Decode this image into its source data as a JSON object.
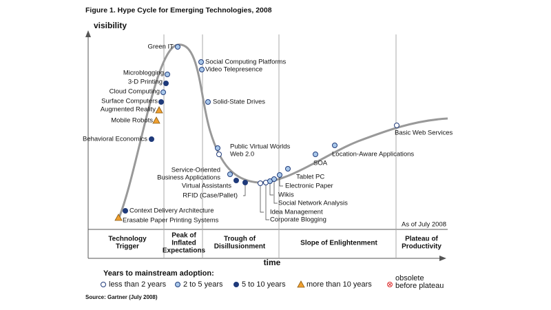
{
  "title": "Figure 1. Hype Cycle for Emerging Technologies, 2008",
  "y_axis_label": "visibility",
  "x_axis_label": "time",
  "as_of": "As of July 2008",
  "phases": [
    [
      "Technology",
      "Trigger"
    ],
    [
      "Peak of",
      "Inflated",
      "Expectations"
    ],
    [
      "Trough of",
      "Disillusionment"
    ],
    [
      "Slope of Enlightenment"
    ],
    [
      "Plateau of",
      "Productivity"
    ]
  ],
  "technologies": [
    {
      "label": [
        "Green IT"
      ],
      "color": "#a9c8ea",
      "shape": "circle"
    },
    {
      "label": [
        "Social Computing Platforms"
      ],
      "color": "#a9c8ea",
      "shape": "circle"
    },
    {
      "label": [
        "Video Telepresence"
      ],
      "color": "#a9c8ea",
      "shape": "circle"
    },
    {
      "label": [
        "Microblogging"
      ],
      "color": "#a9c8ea",
      "shape": "circle"
    },
    {
      "label": [
        "3-D Printing"
      ],
      "color": "#1f3a7a",
      "shape": "circle"
    },
    {
      "label": [
        "Cloud Computing"
      ],
      "color": "#a9c8ea",
      "shape": "circle"
    },
    {
      "label": [
        "Surface Computers"
      ],
      "color": "#1f3a7a",
      "shape": "circle"
    },
    {
      "label": [
        "Augmented Reality"
      ],
      "color": "#f0a030",
      "shape": "triangle"
    },
    {
      "label": [
        "Mobile Robots"
      ],
      "color": "#f0a030",
      "shape": "triangle"
    },
    {
      "label": [
        "Solid-State Drives"
      ],
      "color": "#a9c8ea",
      "shape": "circle"
    },
    {
      "label": [
        "Behavioral Economics"
      ],
      "color": "#1f3a7a",
      "shape": "circle"
    },
    {
      "label": [
        "Public Virtual Worlds"
      ],
      "color": "#a9c8ea",
      "shape": "circle"
    },
    {
      "label": [
        "Web 2.0"
      ],
      "color": "#ffffff",
      "shape": "circle"
    },
    {
      "label": [
        "Service-Oriented",
        "Business Applications"
      ],
      "color": "#a9c8ea",
      "shape": "circle"
    },
    {
      "label": [
        "Virtual Assistants"
      ],
      "color": "#1f3a7a",
      "shape": "circle"
    },
    {
      "label": [
        "RFID (Case/Pallet)"
      ],
      "color": "#1f3a7a",
      "shape": "circle"
    },
    {
      "label": [
        "Idea Management"
      ],
      "color": "#ffffff",
      "shape": "circle"
    },
    {
      "label": [
        "Corporate Blogging"
      ],
      "color": "#ffffff",
      "shape": "circle"
    },
    {
      "label": [
        "Wikis"
      ],
      "color": "#a9c8ea",
      "shape": "circle"
    },
    {
      "label": [
        "Social Network Analysis"
      ],
      "color": "#a9c8ea",
      "shape": "circle"
    },
    {
      "label": [
        "Electronic Paper"
      ],
      "color": "#a9c8ea",
      "shape": "circle"
    },
    {
      "label": [
        "Tablet PC"
      ],
      "color": "#a9c8ea",
      "shape": "circle"
    },
    {
      "label": [
        "SOA"
      ],
      "color": "#a9c8ea",
      "shape": "circle"
    },
    {
      "label": [
        "Location-Aware Applications"
      ],
      "color": "#a9c8ea",
      "shape": "circle"
    },
    {
      "label": [
        "Basic Web Services"
      ],
      "color": "#ffffff",
      "shape": "circle"
    },
    {
      "label": [
        "Context Delivery Architecture"
      ],
      "color": "#1f3a7a",
      "shape": "circle"
    },
    {
      "label": [
        "Erasable Paper Printing Systems"
      ],
      "color": "#f0a030",
      "shape": "triangle"
    }
  ],
  "legend": {
    "title": "Years to mainstream adoption:",
    "items": [
      {
        "label": [
          "less than 2 years"
        ],
        "color": "#ffffff",
        "shape": "circle"
      },
      {
        "label": [
          "2 to 5 years"
        ],
        "color": "#a9c8ea",
        "shape": "circle"
      },
      {
        "label": [
          "5 to 10 years"
        ],
        "color": "#1f3a7a",
        "shape": "circle"
      },
      {
        "label": [
          "more than 10 years"
        ],
        "color": "#f0a030",
        "shape": "triangle"
      },
      {
        "label": [
          "obsolete",
          "before plateau"
        ],
        "color": "#ffffff",
        "shape": "cross-circle"
      }
    ]
  },
  "source": "Source: Gartner (July 2008)"
}
